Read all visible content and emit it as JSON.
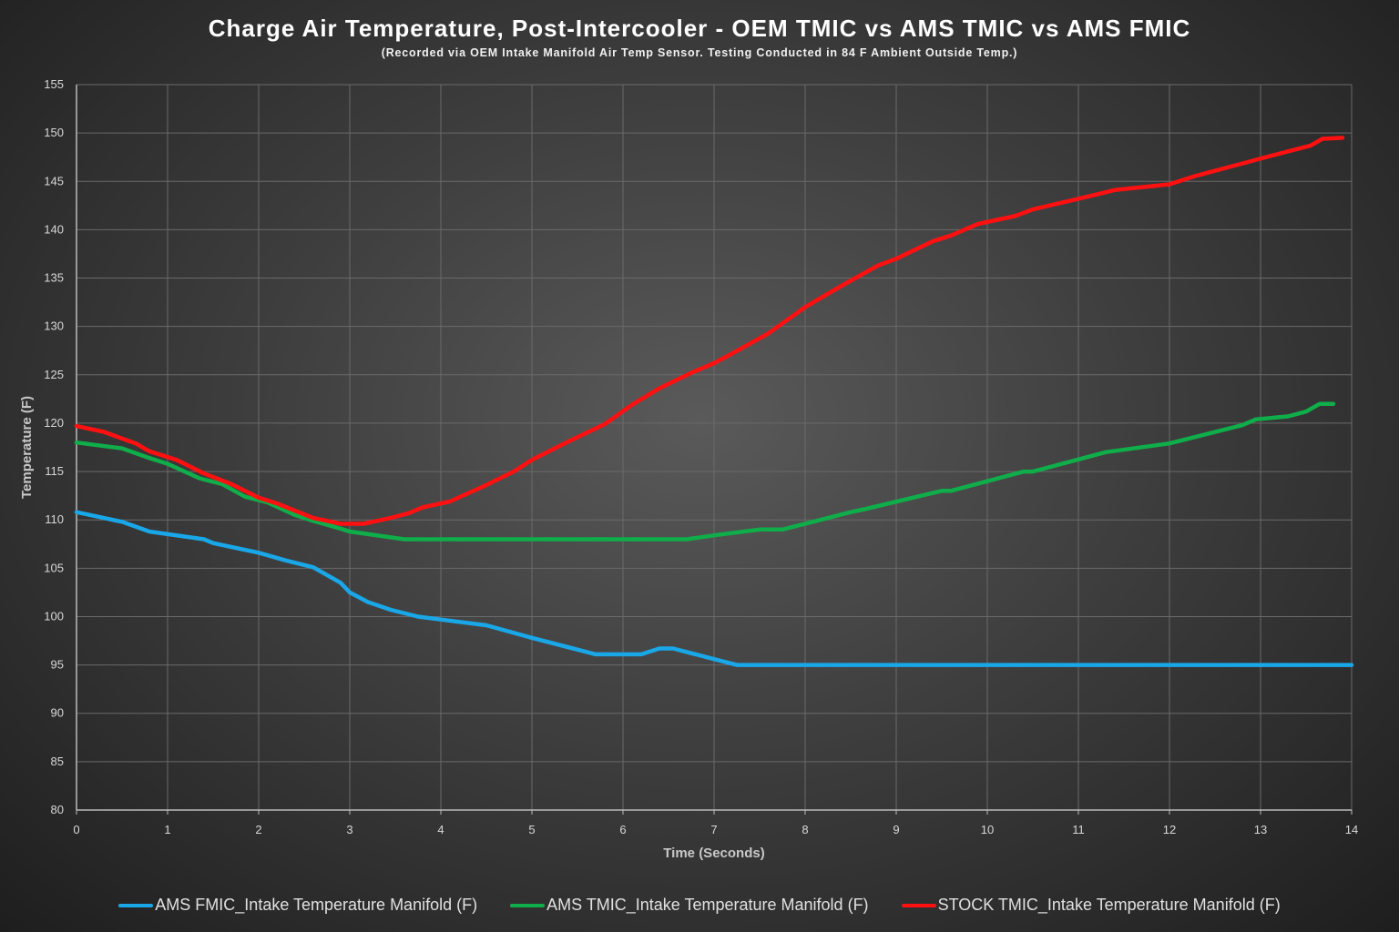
{
  "chart_data": {
    "type": "line",
    "title": "Charge Air Temperature, Post-Intercooler - OEM TMIC vs AMS TMIC vs AMS FMIC",
    "subtitle": "(Recorded via OEM Intake Manifold Air Temp Sensor. Testing Conducted in 84 F Ambient Outside Temp.)",
    "xlabel": "Time (Seconds)",
    "ylabel": "Temperature (F)",
    "xlim": [
      0,
      14
    ],
    "ylim": [
      80,
      155
    ],
    "xticks": [
      0,
      1,
      2,
      3,
      4,
      5,
      6,
      7,
      8,
      9,
      10,
      11,
      12,
      13,
      14
    ],
    "yticks": [
      80,
      85,
      90,
      95,
      100,
      105,
      110,
      115,
      120,
      125,
      130,
      135,
      140,
      145,
      150,
      155
    ],
    "grid": true,
    "legend_position": "bottom",
    "series": [
      {
        "name": "AMS FMIC_Intake Temperature Manifold (F)",
        "color": "#1aa7e8",
        "x": [
          0,
          0.5,
          0.8,
          1.4,
          1.5,
          2,
          2.3,
          2.6,
          2.9,
          3.0,
          3.2,
          3.45,
          3.75,
          4,
          4.5,
          5,
          5.7,
          6.2,
          6.4,
          6.55,
          7.0,
          7.25,
          14
        ],
        "y": [
          110.8,
          109.8,
          108.8,
          108,
          107.6,
          106.6,
          105.8,
          105.1,
          103.5,
          102.5,
          101.5,
          100.7,
          100,
          99.7,
          99.1,
          97.8,
          96.1,
          96.1,
          96.7,
          96.7,
          95.6,
          95,
          95
        ]
      },
      {
        "name": "AMS TMIC_Intake Temperature Manifold (F)",
        "color": "#0fae4a",
        "x": [
          0,
          0.5,
          0.8,
          1.0,
          1.35,
          1.6,
          1.85,
          2.1,
          2.4,
          2.6,
          2.9,
          3.0,
          3.6,
          6.7,
          7.0,
          7.5,
          7.75,
          8.5,
          8.65,
          9.5,
          9.6,
          10.4,
          10.5,
          11.3,
          12.0,
          12.8,
          12.95,
          13.3,
          13.5,
          13.65,
          13.8
        ],
        "y": [
          118,
          117.4,
          116.4,
          115.8,
          114.3,
          113.7,
          112.4,
          111.8,
          110.5,
          109.9,
          109.1,
          108.8,
          108,
          108,
          108.4,
          109,
          109,
          110.8,
          111.1,
          113,
          113,
          115,
          115,
          117,
          117.9,
          119.8,
          120.4,
          120.7,
          121.2,
          122,
          122
        ]
      },
      {
        "name": "STOCK TMIC_Intake Temperature Manifold (F)",
        "color": "#ff1010",
        "x": [
          0,
          0.3,
          0.65,
          0.8,
          1.1,
          1.4,
          1.7,
          2.0,
          2.2,
          2.6,
          2.9,
          3.15,
          3.45,
          3.65,
          3.8,
          4.1,
          4.5,
          4.8,
          5,
          5.4,
          5.8,
          6.1,
          6.4,
          6.75,
          7.0,
          7.2,
          7.6,
          8.0,
          8.4,
          8.8,
          9.0,
          9.4,
          9.6,
          9.9,
          10.3,
          10.5,
          11,
          11.4,
          12,
          12.3,
          12.9,
          13.1,
          13.55,
          13.68,
          13.9
        ],
        "y": [
          119.7,
          119.1,
          117.9,
          117.1,
          116.2,
          114.8,
          113.7,
          112.3,
          111.7,
          110.2,
          109.6,
          109.6,
          110.2,
          110.7,
          111.3,
          111.9,
          113.6,
          115,
          116.2,
          118.1,
          119.9,
          121.9,
          123.6,
          125.2,
          126.2,
          127.2,
          129.3,
          132,
          134.2,
          136.3,
          137,
          138.8,
          139.4,
          140.6,
          141.4,
          142.1,
          143.2,
          144.1,
          144.7,
          145.6,
          147.1,
          147.6,
          148.7,
          149.4,
          149.5
        ]
      }
    ]
  }
}
